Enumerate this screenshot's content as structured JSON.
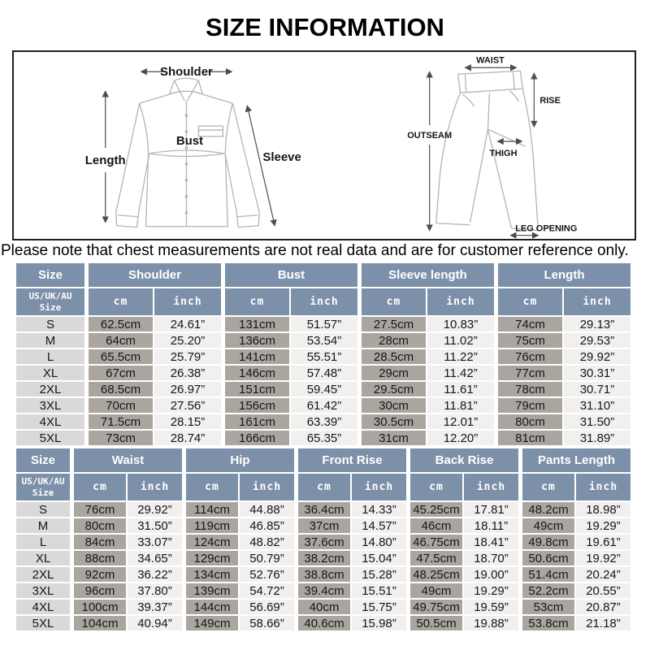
{
  "page": {
    "title": "SIZE INFORMATION",
    "note": "Please note that chest measurements are not real data and are for customer reference only."
  },
  "diagram": {
    "shirt": {
      "shoulder": "Shoulder",
      "length": "Length",
      "bust": "Bust",
      "sleeve": "Sleeve"
    },
    "pants": {
      "waist": "WAIST",
      "rise": "RISE",
      "outseam": "OUTSEAM",
      "thigh": "THIGH",
      "leg_opening": "LEG OPENING"
    }
  },
  "colors": {
    "header_bg": "#7d90a9",
    "cm_cell_bg": "#aaa69f",
    "inch_cell_bg": "#f1f0ee",
    "size_cell_bg": "#d9d9d9",
    "header_text": "#ffffff"
  },
  "tables": [
    {
      "size_header": "Size",
      "size_subheader": "US/UK/AU\nSize",
      "unit_headers": [
        "cm",
        "inch"
      ],
      "groups": [
        "Shoulder",
        "Bust",
        "Sleeve length",
        "Length"
      ],
      "rows": [
        {
          "size": "S",
          "values": [
            "62.5cm",
            "24.61”",
            "131cm",
            "51.57”",
            "27.5cm",
            "10.83”",
            "74cm",
            "29.13”"
          ]
        },
        {
          "size": "M",
          "values": [
            "64cm",
            "25.20”",
            "136cm",
            "53.54”",
            "28cm",
            "11.02”",
            "75cm",
            "29.53”"
          ]
        },
        {
          "size": "L",
          "values": [
            "65.5cm",
            "25.79”",
            "141cm",
            "55.51”",
            "28.5cm",
            "11.22”",
            "76cm",
            "29.92”"
          ]
        },
        {
          "size": "XL",
          "values": [
            "67cm",
            "26.38”",
            "146cm",
            "57.48”",
            "29cm",
            "11.42”",
            "77cm",
            "30.31”"
          ]
        },
        {
          "size": "2XL",
          "values": [
            "68.5cm",
            "26.97”",
            "151cm",
            "59.45”",
            "29.5cm",
            "11.61”",
            "78cm",
            "30.71”"
          ]
        },
        {
          "size": "3XL",
          "values": [
            "70cm",
            "27.56”",
            "156cm",
            "61.42”",
            "30cm",
            "11.81”",
            "79cm",
            "31.10”"
          ]
        },
        {
          "size": "4XL",
          "values": [
            "71.5cm",
            "28.15”",
            "161cm",
            "63.39”",
            "30.5cm",
            "12.01”",
            "80cm",
            "31.50”"
          ]
        },
        {
          "size": "5XL",
          "values": [
            "73cm",
            "28.74”",
            "166cm",
            "65.35”",
            "31cm",
            "12.20”",
            "81cm",
            "31.89”"
          ]
        }
      ]
    },
    {
      "size_header": "Size",
      "size_subheader": "US/UK/AU\nSize",
      "unit_headers": [
        "cm",
        "inch"
      ],
      "groups": [
        "Waist",
        "Hip",
        "Front Rise",
        "Back Rise",
        "Pants Length"
      ],
      "rows": [
        {
          "size": "S",
          "values": [
            "76cm",
            "29.92”",
            "114cm",
            "44.88”",
            "36.4cm",
            "14.33”",
            "45.25cm",
            "17.81”",
            "48.2cm",
            "18.98”"
          ]
        },
        {
          "size": "M",
          "values": [
            "80cm",
            "31.50”",
            "119cm",
            "46.85”",
            "37cm",
            "14.57”",
            "46cm",
            "18.11”",
            "49cm",
            "19.29”"
          ]
        },
        {
          "size": "L",
          "values": [
            "84cm",
            "33.07”",
            "124cm",
            "48.82”",
            "37.6cm",
            "14.80”",
            "46.75cm",
            "18.41”",
            "49.8cm",
            "19.61”"
          ]
        },
        {
          "size": "XL",
          "values": [
            "88cm",
            "34.65”",
            "129cm",
            "50.79”",
            "38.2cm",
            "15.04”",
            "47.5cm",
            "18.70”",
            "50.6cm",
            "19.92”"
          ]
        },
        {
          "size": "2XL",
          "values": [
            "92cm",
            "36.22”",
            "134cm",
            "52.76”",
            "38.8cm",
            "15.28”",
            "48.25cm",
            "19.00”",
            "51.4cm",
            "20.24”"
          ]
        },
        {
          "size": "3XL",
          "values": [
            "96cm",
            "37.80”",
            "139cm",
            "54.72”",
            "39.4cm",
            "15.51”",
            "49cm",
            "19.29”",
            "52.2cm",
            "20.55”"
          ]
        },
        {
          "size": "4XL",
          "values": [
            "100cm",
            "39.37”",
            "144cm",
            "56.69”",
            "40cm",
            "15.75”",
            "49.75cm",
            "19.59”",
            "53cm",
            "20.87”"
          ]
        },
        {
          "size": "5XL",
          "values": [
            "104cm",
            "40.94”",
            "149cm",
            "58.66”",
            "40.6cm",
            "15.98”",
            "50.5cm",
            "19.88”",
            "53.8cm",
            "21.18”"
          ]
        }
      ]
    }
  ]
}
